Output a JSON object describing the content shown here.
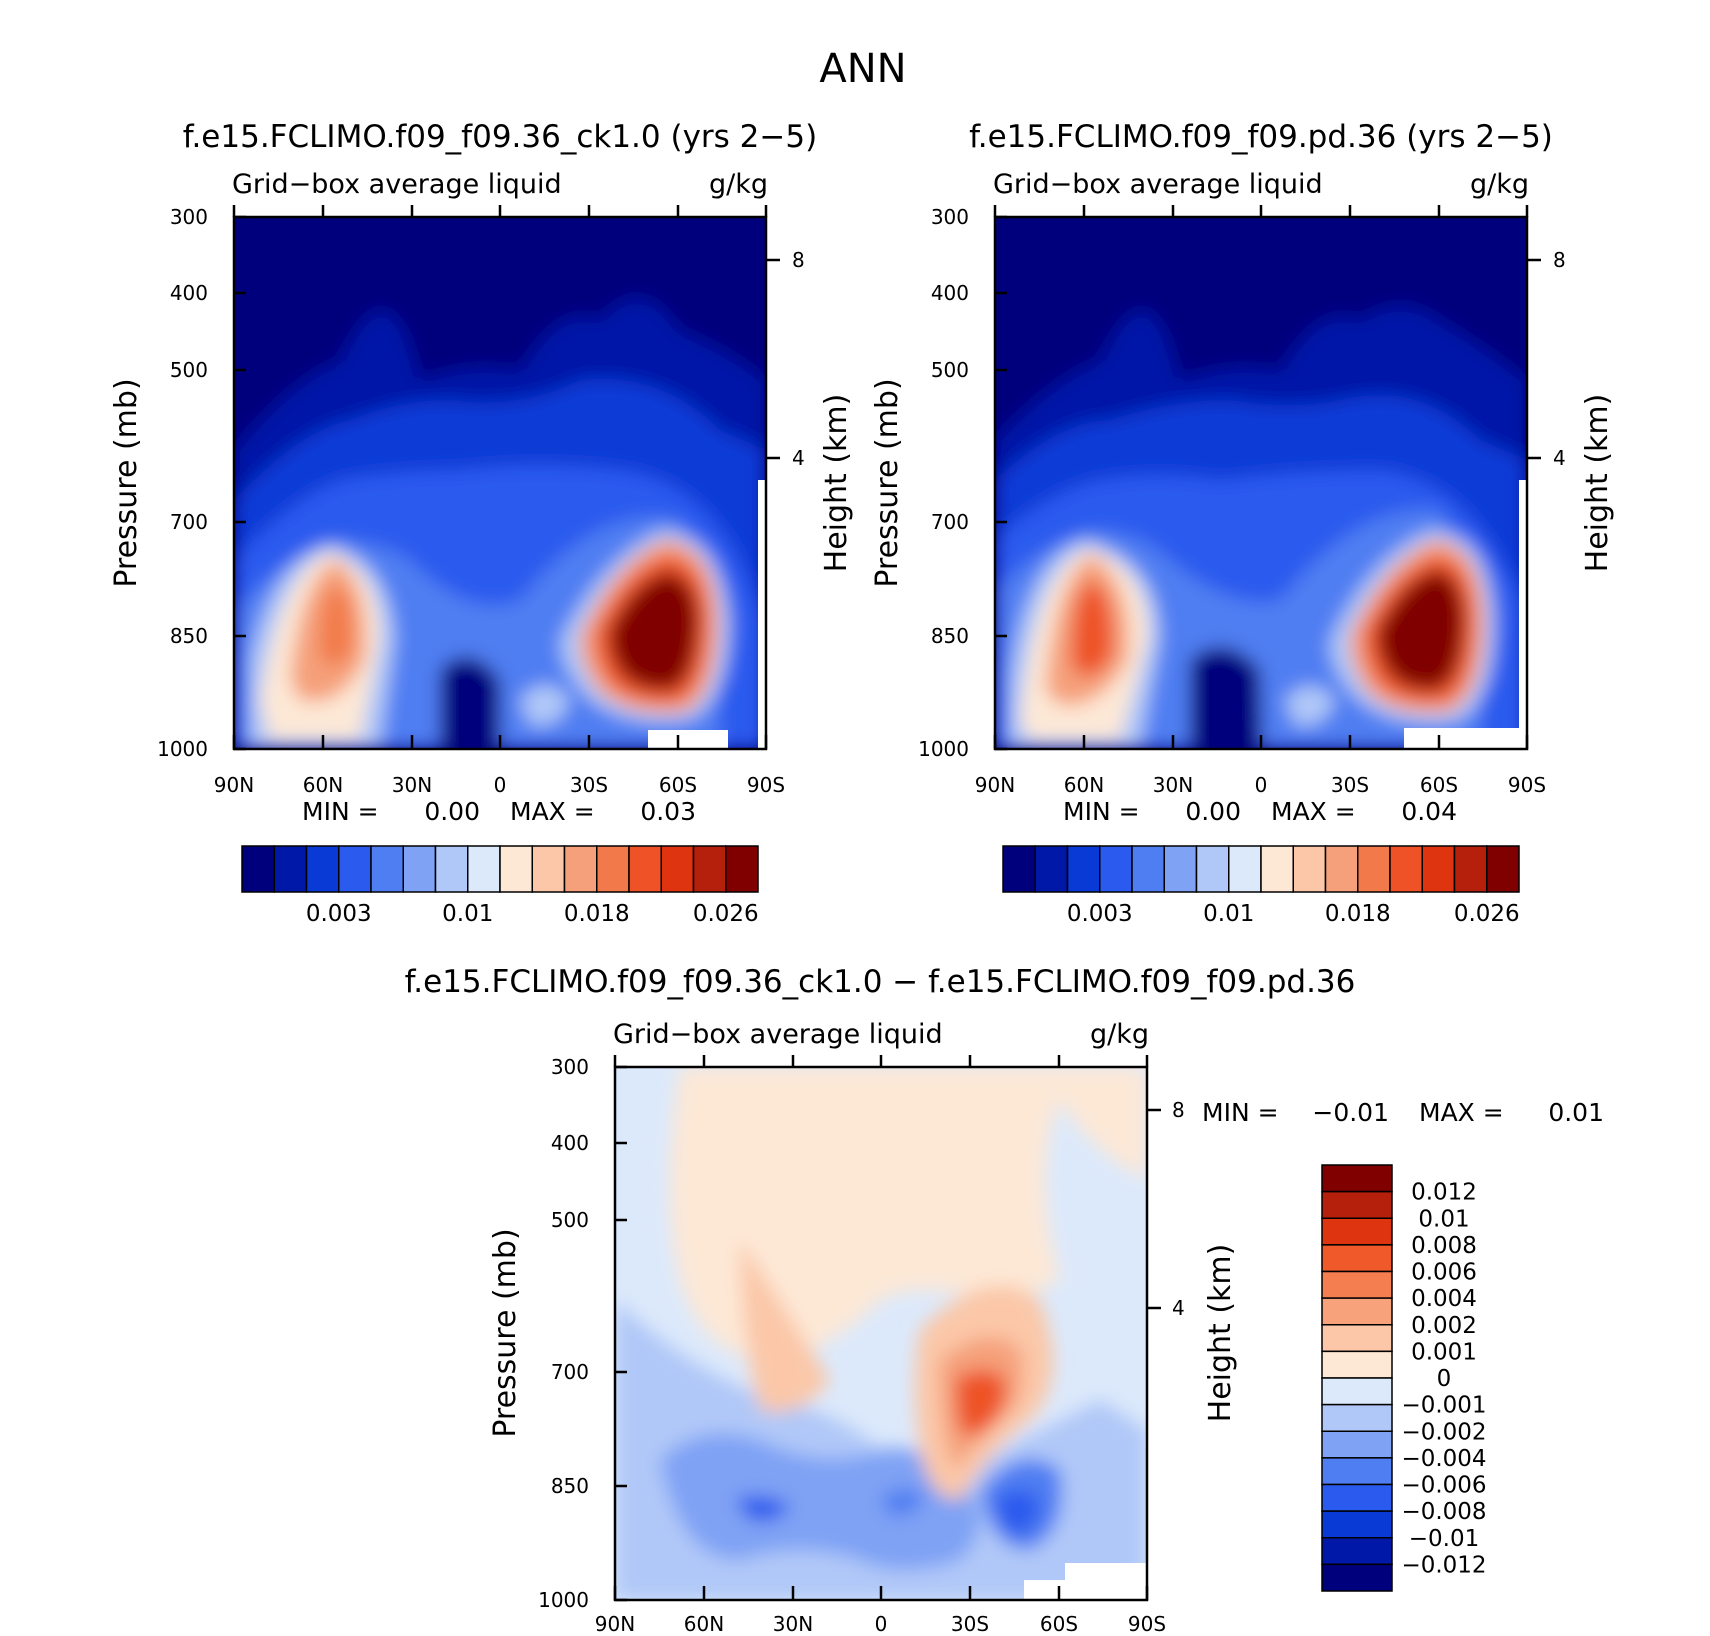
{
  "figure_title": "ANN",
  "chart_data": [
    {
      "type": "heatmap",
      "id": "panel-test",
      "title": "f.e15.FCLIMO.f09_f09.36_ck1.0 (yrs 2−5)",
      "left_label": "Grid−box average liquid",
      "right_label": "g/kg",
      "ylabel": "Pressure (mb)",
      "ylabel_right": "Height (km)",
      "xlabel": "",
      "x_ticks": [
        "90N",
        "60N",
        "30N",
        "0",
        "30S",
        "60S",
        "90S"
      ],
      "y_ticks": [
        "300",
        "400",
        "500",
        "700",
        "850",
        "1000"
      ],
      "y_ticks_right": [
        "8",
        "4"
      ],
      "ylim": [
        300,
        1000
      ],
      "min_label": "MIN =",
      "min_value": "0.00",
      "max_label": "MAX =",
      "max_value": "0.03",
      "colorbar": {
        "labels": [
          "0.003",
          "0.01",
          "0.018",
          "0.026"
        ],
        "colors": [
          "#00007c",
          "#0018a8",
          "#0a3ad6",
          "#2a5aee",
          "#4f7ef2",
          "#7fa2f4",
          "#b0c8f8",
          "#dce9fb",
          "#fde8d6",
          "#fbc7a8",
          "#f5a07a",
          "#f27a4a",
          "#ee5226",
          "#de3410",
          "#b4200c",
          "#800000"
        ]
      }
    },
    {
      "type": "heatmap",
      "id": "panel-control",
      "title": "f.e15.FCLIMO.f09_f09.pd.36 (yrs 2−5)",
      "left_label": "Grid−box average liquid",
      "right_label": "g/kg",
      "ylabel": "Pressure (mb)",
      "ylabel_right": "Height (km)",
      "xlabel": "",
      "x_ticks": [
        "90N",
        "60N",
        "30N",
        "0",
        "30S",
        "60S",
        "90S"
      ],
      "y_ticks": [
        "300",
        "400",
        "500",
        "700",
        "850",
        "1000"
      ],
      "y_ticks_right": [
        "8",
        "4"
      ],
      "ylim": [
        300,
        1000
      ],
      "min_label": "MIN =",
      "min_value": "0.00",
      "max_label": "MAX =",
      "max_value": "0.04",
      "colorbar": {
        "labels": [
          "0.003",
          "0.01",
          "0.018",
          "0.026"
        ],
        "colors": [
          "#00007c",
          "#0018a8",
          "#0a3ad6",
          "#2a5aee",
          "#4f7ef2",
          "#7fa2f4",
          "#b0c8f8",
          "#dce9fb",
          "#fde8d6",
          "#fbc7a8",
          "#f5a07a",
          "#f27a4a",
          "#ee5226",
          "#de3410",
          "#b4200c",
          "#800000"
        ]
      }
    },
    {
      "type": "heatmap",
      "id": "panel-diff",
      "title": "f.e15.FCLIMO.f09_f09.36_ck1.0 − f.e15.FCLIMO.f09_f09.pd.36",
      "left_label": "Grid−box average liquid",
      "right_label": "g/kg",
      "ylabel": "Pressure (mb)",
      "ylabel_right": "Height (km)",
      "xlabel": "",
      "x_ticks": [
        "90N",
        "60N",
        "30N",
        "0",
        "30S",
        "60S",
        "90S"
      ],
      "y_ticks": [
        "300",
        "400",
        "500",
        "700",
        "850",
        "1000"
      ],
      "y_ticks_right": [
        "8",
        "4"
      ],
      "ylim": [
        300,
        1000
      ],
      "min_label": "MIN =",
      "min_value": "−0.01",
      "max_label": "MAX =",
      "max_value": "0.01",
      "colorbar": {
        "labels": [
          "0.012",
          "0.01",
          "0.008",
          "0.006",
          "0.004",
          "0.002",
          "0.001",
          "0",
          "−0.001",
          "−0.002",
          "−0.004",
          "−0.006",
          "−0.008",
          "−0.01",
          "−0.012"
        ],
        "colors": [
          "#800000",
          "#b4200c",
          "#de3410",
          "#f05a2a",
          "#f57e50",
          "#f8a27c",
          "#fbc7a8",
          "#fde8d6",
          "#dce9fb",
          "#b0c8f8",
          "#7fa2f4",
          "#4f7ef2",
          "#2a5aee",
          "#0a3ad6",
          "#0018a8",
          "#00007c"
        ]
      }
    }
  ]
}
